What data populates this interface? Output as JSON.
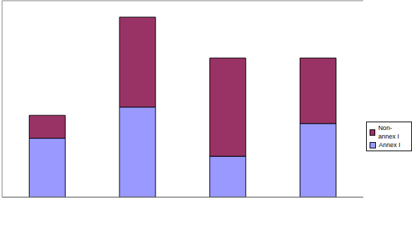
{
  "chart_data": {
    "type": "bar",
    "stacked": true,
    "categories": [
      null,
      null,
      null,
      null
    ],
    "series": [
      {
        "name": "Annex I",
        "color": "#9999ff",
        "values": [
          1.8,
          2.75,
          1.25,
          2.25
        ]
      },
      {
        "name": "Non-annex I",
        "color": "#993366",
        "values": [
          0.7,
          2.75,
          3.0,
          2.0
        ]
      }
    ],
    "ylim": [
      0,
      6
    ],
    "yticks": [
      0,
      1,
      2,
      3,
      4,
      5,
      6
    ],
    "grid": true,
    "legend": "right",
    "tick_labels": false
  }
}
